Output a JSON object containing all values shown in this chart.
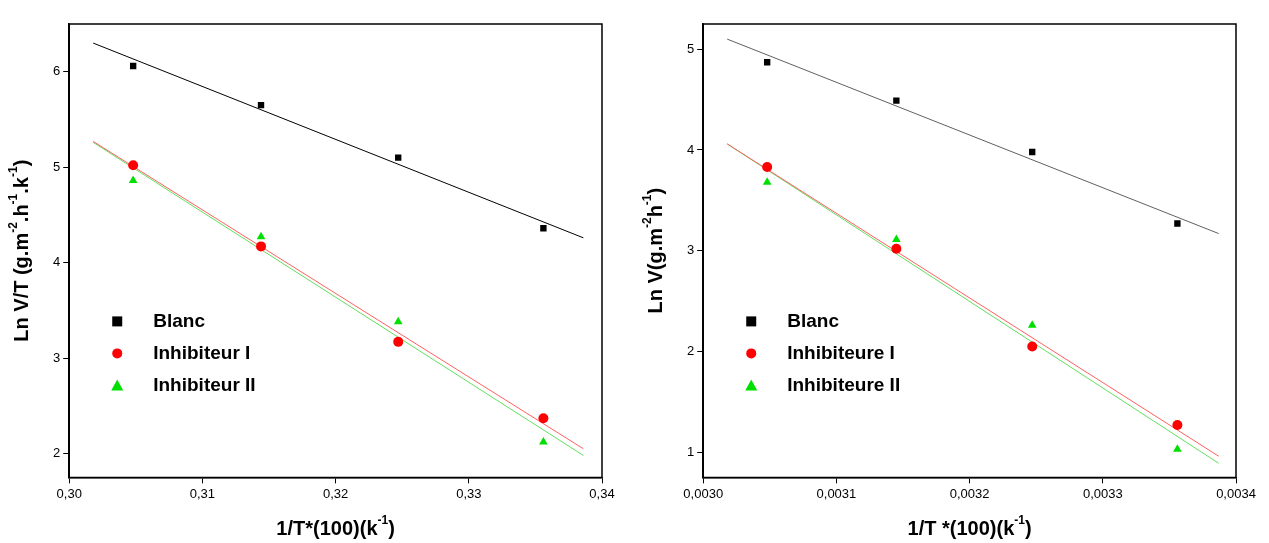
{
  "chart_data": [
    {
      "type": "scatter",
      "xlabel": "1/T*(100)(k$^{-1}$)",
      "ylabel": "Ln V/T (g.m$^{-2}$.h$^{-1}$.k$^{-1}$)",
      "xlim": [
        0.3,
        0.34
      ],
      "ylim": [
        1.75,
        6.5
      ],
      "xticks": [
        {
          "value": 0.3,
          "label": "0,30"
        },
        {
          "value": 0.31,
          "label": "0,31"
        },
        {
          "value": 0.32,
          "label": "0,32"
        },
        {
          "value": 0.33,
          "label": "0,33"
        },
        {
          "value": 0.34,
          "label": "0,34"
        }
      ],
      "yticks": [
        2,
        3,
        4,
        5,
        6
      ],
      "grid": false,
      "legend": "bottom left",
      "series": [
        {
          "name": "Blanc",
          "color": "#000000",
          "marker": "square",
          "x": [
            0.3048,
            0.3144,
            0.3247,
            0.3356
          ],
          "values": [
            6.06,
            5.65,
            5.1,
            4.36
          ]
        },
        {
          "name": "Inhibiteur I",
          "color": "#ff0000",
          "marker": "circle",
          "x": [
            0.3048,
            0.3144,
            0.3247,
            0.3356
          ],
          "values": [
            5.02,
            4.17,
            3.17,
            2.37
          ]
        },
        {
          "name": "Inhibiteur II",
          "color": "#00e000",
          "marker": "triangle",
          "x": [
            0.3048,
            0.3144,
            0.3247,
            0.3356
          ],
          "values": [
            4.86,
            4.27,
            3.38,
            2.12
          ]
        },
        {
          "type": "line",
          "color": "#000000",
          "marker": "none",
          "x": [
            0.3018,
            0.3386
          ],
          "values": [
            6.3,
            4.26
          ]
        },
        {
          "type": "line",
          "color": "#ff6060",
          "marker": "none",
          "x": [
            0.3018,
            0.3386
          ],
          "values": [
            5.27,
            2.05
          ]
        },
        {
          "type": "line",
          "color": "#60e060",
          "marker": "none",
          "x": [
            0.3018,
            0.3386
          ],
          "values": [
            5.26,
            1.98
          ]
        }
      ]
    },
    {
      "type": "scatter",
      "xlabel": "1/T *(100)(k$^{-1}$)",
      "ylabel": "Ln V(g.m$^{-2}$h$^{-1}$)",
      "xlim": [
        0.003,
        0.0034
      ],
      "ylim": [
        0.75,
        5.25
      ],
      "xticks": [
        {
          "value": 0.003,
          "label": "0,0030"
        },
        {
          "value": 0.0031,
          "label": "0,0031"
        },
        {
          "value": 0.0032,
          "label": "0,0032"
        },
        {
          "value": 0.0033,
          "label": "0,0033"
        },
        {
          "value": 0.0034,
          "label": "0,0034"
        }
      ],
      "yticks": [
        1,
        2,
        3,
        4,
        5
      ],
      "grid": false,
      "legend": "bottom left",
      "series": [
        {
          "name": "Blanc",
          "color": "#000000",
          "marker": "square",
          "x": [
            0.003048,
            0.003145,
            0.003247,
            0.003356
          ],
          "values": [
            4.87,
            4.49,
            3.98,
            3.27
          ]
        },
        {
          "name": "Inhibiteure I",
          "color": "#ff0000",
          "marker": "circle",
          "x": [
            0.003048,
            0.003145,
            0.003247,
            0.003356
          ],
          "values": [
            3.83,
            3.02,
            2.05,
            1.27
          ]
        },
        {
          "name": "Inhibiteure II",
          "color": "#00e000",
          "marker": "triangle",
          "x": [
            0.003048,
            0.003145,
            0.003247,
            0.003356
          ],
          "values": [
            3.68,
            3.11,
            2.26,
            1.03
          ]
        },
        {
          "type": "line",
          "color": "#606060",
          "marker": "none",
          "x": [
            0.003018,
            0.003387
          ],
          "values": [
            5.1,
            3.17
          ]
        },
        {
          "type": "line",
          "color": "#ff6060",
          "marker": "none",
          "x": [
            0.003018,
            0.003387
          ],
          "values": [
            4.06,
            0.96
          ]
        },
        {
          "type": "line",
          "color": "#60e060",
          "marker": "none",
          "x": [
            0.003018,
            0.003387
          ],
          "values": [
            4.06,
            0.89
          ]
        }
      ]
    }
  ]
}
